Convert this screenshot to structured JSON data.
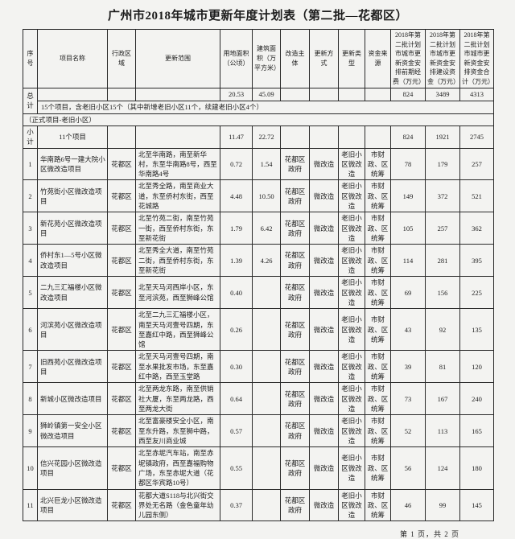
{
  "title": "广州市2018年城市更新年度计划表（第二批—花都区）",
  "footer": {
    "page_info": "第 1 页，共 2 页"
  },
  "table": {
    "columns": [
      "序号",
      "项目名称",
      "行政区域",
      "更新范围",
      "用地面积（公顷）",
      "建筑面积（万平方米）",
      "改造主体",
      "更新方式",
      "更新类型",
      "资金来源",
      "2018年第二批计划市城市更新资金安排前期经费（万元）",
      "2018年第二批计划市城市更新资金安排建设资金（万元）",
      "2018年第二批计划市城市更新资金安排资金合计（万元）"
    ],
    "total": {
      "label": "总计",
      "land": "20.53",
      "build": "45.09",
      "pre": "824",
      "construction": "3489",
      "total": "4313",
      "note": "15个项目，含老旧小区15个（其中新增老旧小区11个，续建老旧小区4个）"
    },
    "section_label": "（正式项目-老旧小区）",
    "subtotal": {
      "label": "小计",
      "name": "11个项目",
      "land": "11.47",
      "build": "22.72",
      "pre": "824",
      "construction": "1921",
      "total": "2745"
    },
    "rows": [
      {
        "no": "1",
        "name": "华南路6号一建大院小区微改造项目",
        "region": "花都区",
        "scope": "北至华南路，南至新华村，东至华南路8号，西至华南路4号",
        "land": "0.72",
        "build": "1.54",
        "body": "花都区政府",
        "method": "微改造",
        "type": "老旧小区微改造",
        "fund": "市财政、区统筹",
        "pre": "78",
        "construction": "179",
        "total": "257"
      },
      {
        "no": "2",
        "name": "竹苑街小区微改造项目",
        "region": "花都区",
        "scope": "北至秀全路，南至商业大道，东至侨村东街，西至花城路",
        "land": "4.48",
        "build": "10.50",
        "body": "花都区政府",
        "method": "微改造",
        "type": "老旧小区微改造",
        "fund": "市财政、区统筹",
        "pre": "149",
        "construction": "372",
        "total": "521"
      },
      {
        "no": "3",
        "name": "新花苑小区微改造项目",
        "region": "花都区",
        "scope": "北至竹苑二街，南至竹苑一街，西至侨村东街，东至新花街",
        "land": "1.79",
        "build": "6.42",
        "body": "花都区政府",
        "method": "微改造",
        "type": "老旧小区微改造",
        "fund": "市财政、区统筹",
        "pre": "105",
        "construction": "257",
        "total": "362"
      },
      {
        "no": "4",
        "name": "侨村东1—5号小区微改造项目",
        "region": "花都区",
        "scope": "北至秀全大道，南至竹苑二街，西至侨村东街，东至新花街",
        "land": "1.39",
        "build": "4.26",
        "body": "花都区政府",
        "method": "微改造",
        "type": "老旧小区微改造",
        "fund": "市财政、区统筹",
        "pre": "114",
        "construction": "281",
        "total": "395"
      },
      {
        "no": "5",
        "name": "二九三汇福楼小区微改造项目",
        "region": "花都区",
        "scope": "北至天马河西岸小区，东至河滨苑，西至狮峰公馆",
        "land": "0.40",
        "build": "",
        "body": "花都区政府",
        "method": "微改造",
        "type": "老旧小区微改造",
        "fund": "市财政、区统筹",
        "pre": "69",
        "construction": "156",
        "total": "225"
      },
      {
        "no": "6",
        "name": "河滨苑小区微改造项目",
        "region": "花都区",
        "scope": "北至二九三汇福楼小区，南至天马河壹号四期，东至嘉红中路，西至狮峰公馆",
        "land": "0.26",
        "build": "",
        "body": "花都区政府",
        "method": "微改造",
        "type": "老旧小区微改造",
        "fund": "市财政、区统筹",
        "pre": "43",
        "construction": "92",
        "total": "135"
      },
      {
        "no": "7",
        "name": "旧西苑小区微改造项目",
        "region": "花都区",
        "scope": "北至天马河壹号四期，南至水果批发市场，东至嘉红中路，西至玉堂路",
        "land": "0.30",
        "build": "",
        "body": "花都区政府",
        "method": "微改造",
        "type": "老旧小区微改造",
        "fund": "市财政、区统筹",
        "pre": "39",
        "construction": "81",
        "total": "120"
      },
      {
        "no": "8",
        "name": "新城小区微改造项目",
        "region": "花都区",
        "scope": "北至两龙东路，南至供销社大厦，东至两龙路，西至两龙大街",
        "land": "0.64",
        "build": "",
        "body": "花都区政府",
        "method": "微改造",
        "type": "老旧小区微改造",
        "fund": "市财政、区统筹",
        "pre": "73",
        "construction": "167",
        "total": "240"
      },
      {
        "no": "9",
        "name": "狮岭镇第一安全小区微改造项目",
        "region": "花都区",
        "scope": "北至富豪楼安全小区，南至东升路，东至狮中路，西至友川商业城",
        "land": "0.57",
        "build": "",
        "body": "花都区政府",
        "method": "微改造",
        "type": "老旧小区微改造",
        "fund": "市财政、区统筹",
        "pre": "52",
        "construction": "113",
        "total": "165"
      },
      {
        "no": "10",
        "name": "信兴花园小区微改造项目",
        "region": "花都区",
        "scope": "北至赤坭汽车站，南至赤坭镇政府，西至嘉福购物广场，东至赤坭大道（花都区华宾路10号）",
        "land": "0.55",
        "build": "",
        "body": "花都区政府",
        "method": "微改造",
        "type": "老旧小区微改造",
        "fund": "市财政、区统筹",
        "pre": "56",
        "construction": "124",
        "total": "180"
      },
      {
        "no": "11",
        "name": "北兴巨龙小区微改造项目",
        "region": "花都区",
        "scope": "花都大道S118与北兴街交界处无名路（金色童年幼儿园东侧）",
        "land": "0.37",
        "build": "",
        "body": "花都区政府",
        "method": "微改造",
        "type": "老旧小区微改造",
        "fund": "市财政、区统筹",
        "pre": "46",
        "construction": "99",
        "total": "145"
      }
    ]
  }
}
